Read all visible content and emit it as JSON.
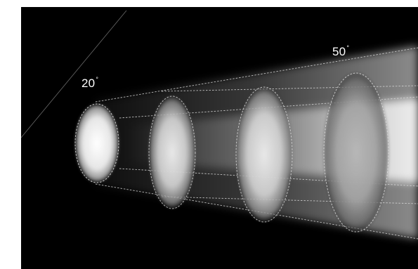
{
  "illustration": {
    "background_color": "#000000",
    "beam_color": "#ffffff",
    "outline_style": "dashed-white",
    "labels": {
      "narrow_angle": {
        "value": "20",
        "unit": "°"
      },
      "wide_angle": {
        "value": "50",
        "unit": "°"
      }
    }
  }
}
